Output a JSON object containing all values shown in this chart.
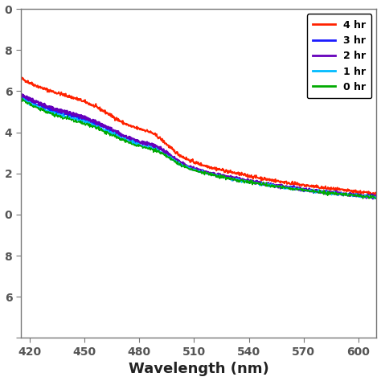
{
  "xlabel": "Wavelength (nm)",
  "xlim": [
    415,
    610
  ],
  "ylim": [
    -0.6,
    1.0
  ],
  "ytick_positions": [
    1.0,
    0.8,
    0.6,
    0.4,
    0.2,
    0.0,
    -0.2,
    -0.4,
    -0.6
  ],
  "ytick_labels": [
    "0",
    "8",
    "6",
    "4",
    "2",
    "0",
    "8",
    "6",
    ""
  ],
  "xticks": [
    420,
    450,
    480,
    510,
    540,
    570,
    600
  ],
  "xtick_labels": [
    "420",
    "450",
    "480",
    "510",
    "540",
    "570",
    "600"
  ],
  "legend_labels": [
    "4 hr",
    "3 hr",
    "2 hr",
    "1 hr",
    "0 hr"
  ],
  "line_colors": [
    "#ff2200",
    "#1a1aff",
    "#6600bb",
    "#00bbff",
    "#00aa00"
  ],
  "line_widths": [
    1.3,
    1.2,
    1.8,
    1.0,
    1.0
  ],
  "background": "#ffffff"
}
